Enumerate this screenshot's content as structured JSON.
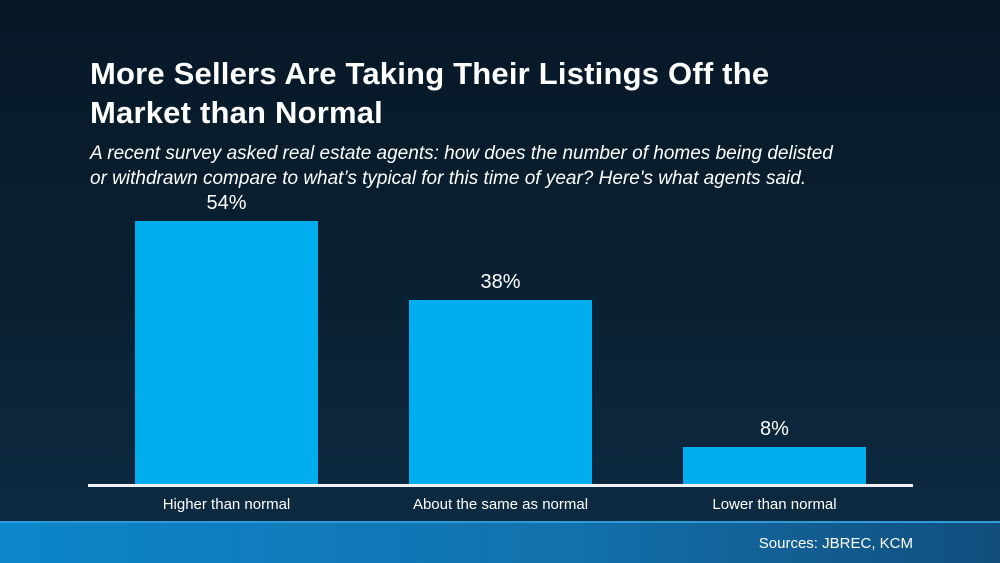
{
  "header": {
    "title_lines": [
      "More Sellers Are Taking Their Listings Off the",
      "Market than Normal"
    ],
    "subtitle_lines": [
      "A recent survey asked real estate agents: how does the number of homes being delisted",
      "or withdrawn compare to what’s typical for this time of year? Here's what agents said."
    ]
  },
  "chart_data": {
    "type": "bar",
    "title": "More Sellers Are Taking Their Listings Off the Market than Normal",
    "categories": [
      "Higher than normal",
      "About the same as normal",
      "Lower than normal"
    ],
    "values": [
      54,
      38,
      8
    ],
    "value_labels": [
      "54%",
      "38%",
      "8%"
    ],
    "xlabel": "",
    "ylabel": "",
    "ylim": [
      0,
      60
    ],
    "grid": false,
    "legend": false,
    "bar_color": "#00AEEF"
  },
  "footer": {
    "sources": "Sources: JBREC, KCM"
  },
  "colors": {
    "background_top": "#071826",
    "background_bottom": "#0e2c44",
    "bar": "#00AEEF",
    "axis_line": "#eef2f4",
    "footer_gradient_left": "#0c86cb",
    "footer_gradient_right": "#114e7d",
    "text": "#ffffff"
  }
}
